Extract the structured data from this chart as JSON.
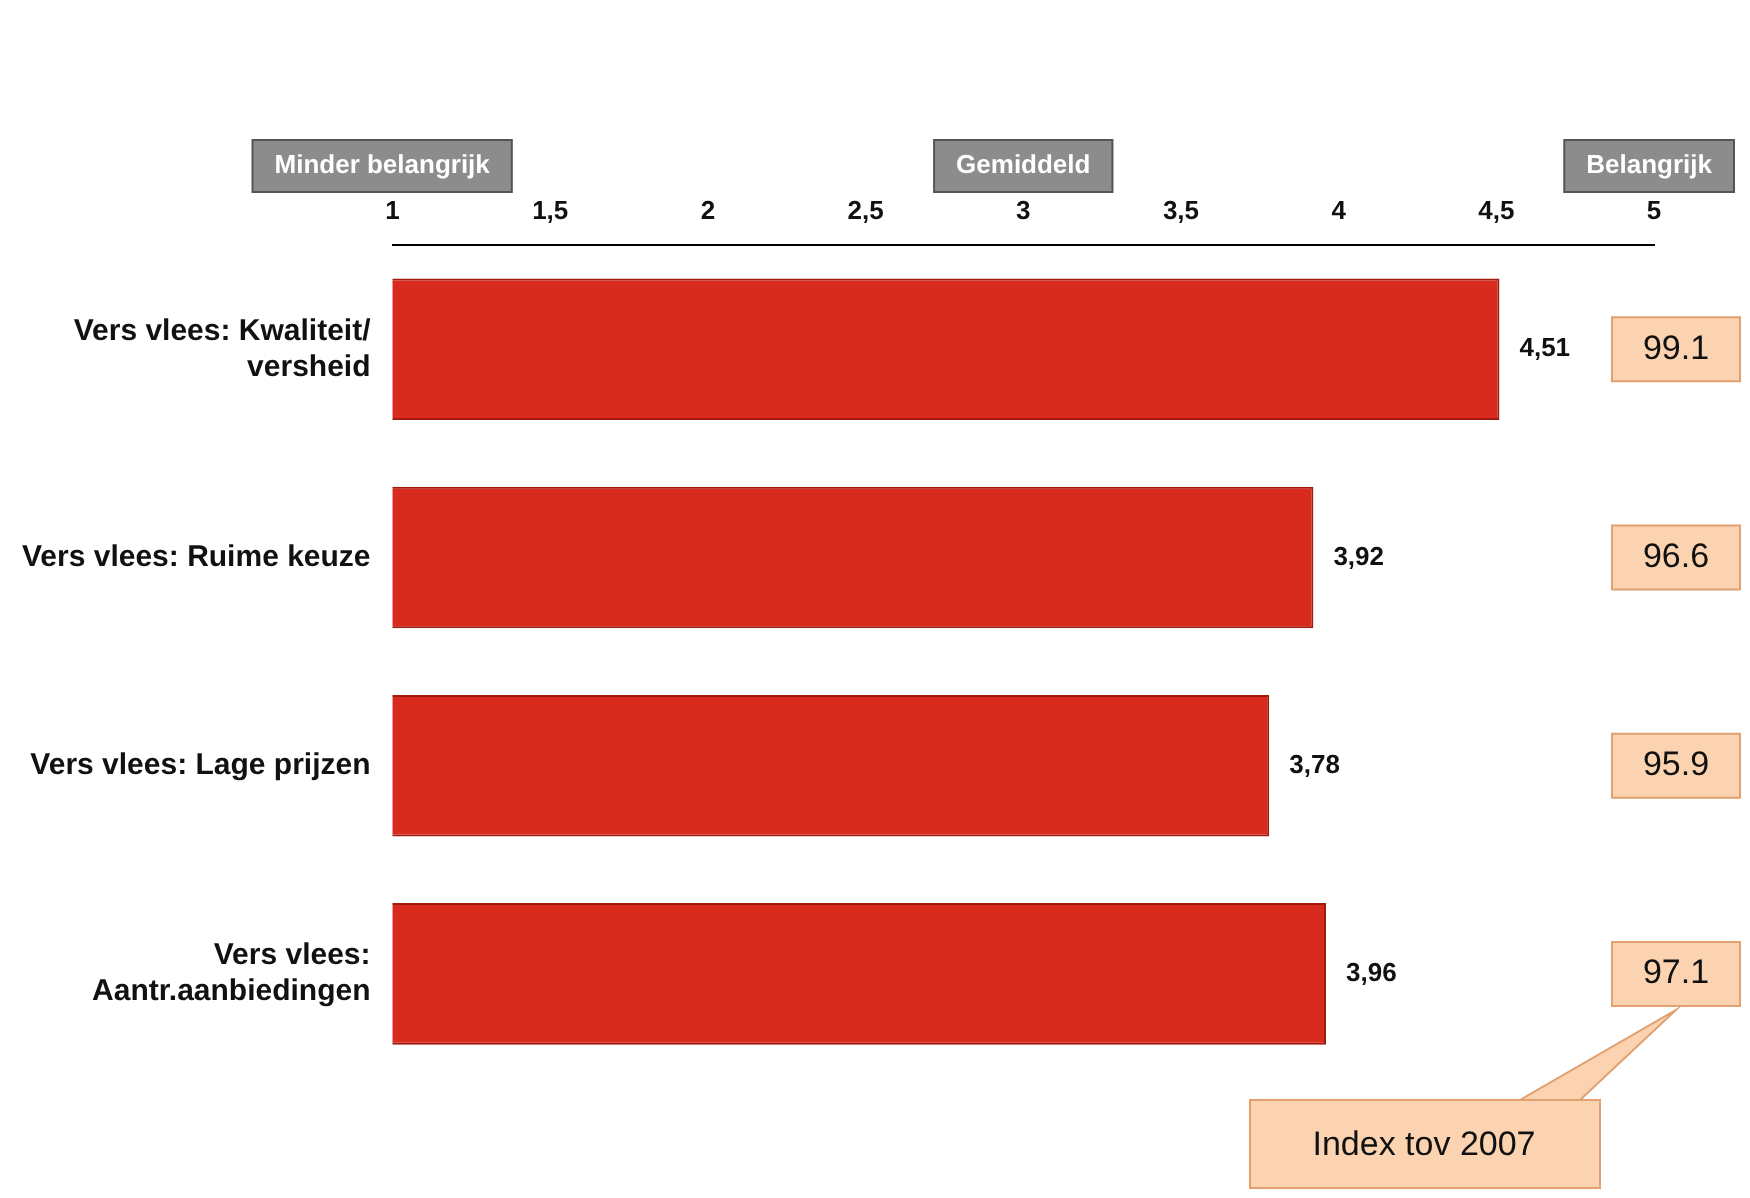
{
  "chart_data": {
    "type": "bar",
    "orientation": "horizontal",
    "categories": [
      "Vers vlees: Kwaliteit/ versheid",
      "Vers vlees: Ruime keuze",
      "Vers vlees: Lage prijzen",
      "Vers vlees: Aantr.aanbiedingen"
    ],
    "values": [
      4.51,
      3.92,
      3.78,
      3.96
    ],
    "value_labels": [
      "4,51",
      "3,92",
      "3,78",
      "3,96"
    ],
    "color": "#d92a1e",
    "xlim": [
      1,
      5
    ],
    "xticks": [
      1,
      {
        "value": 1.5,
        "label": "1,5"
      },
      2,
      {
        "value": 2.5,
        "label": "2,5"
      },
      3,
      {
        "value": 3.5,
        "label": "3,5"
      },
      4,
      {
        "value": 4.5,
        "label": "4,5"
      },
      5
    ],
    "grid": false,
    "legend": false,
    "annotations": [
      "Minder belangrijk",
      "Gemiddeld",
      "Belangrijk",
      "99.1",
      "96.6",
      "95.9",
      "97.1",
      "Index tov 2007"
    ]
  }
}
